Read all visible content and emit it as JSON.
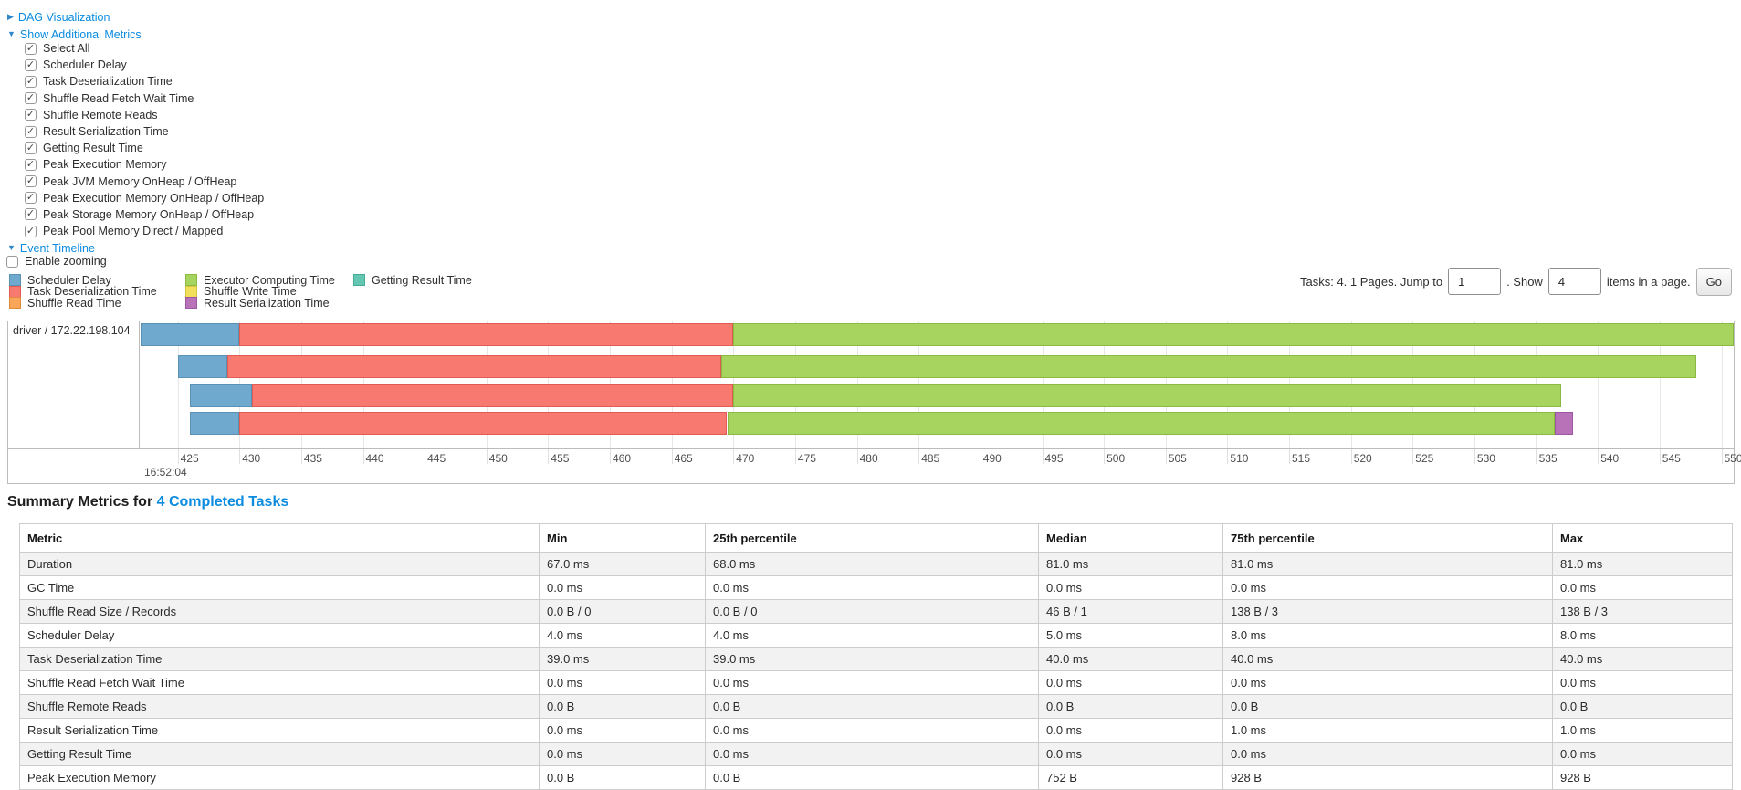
{
  "links": {
    "dag": "DAG Visualization",
    "show_metrics": "Show Additional Metrics",
    "event_timeline": "Event Timeline"
  },
  "metrics_checkboxes": [
    "Select All",
    "Scheduler Delay",
    "Task Deserialization Time",
    "Shuffle Read Fetch Wait Time",
    "Shuffle Remote Reads",
    "Result Serialization Time",
    "Getting Result Time",
    "Peak Execution Memory",
    "Peak JVM Memory OnHeap / OffHeap",
    "Peak Execution Memory OnHeap / OffHeap",
    "Peak Storage Memory OnHeap / OffHeap",
    "Peak Pool Memory Direct / Mapped"
  ],
  "enable_zooming_label": "Enable zooming",
  "legend": {
    "columns": [
      [
        {
          "label": "Scheduler Delay",
          "color": "#6FA9CE",
          "border": "#5992B6"
        },
        {
          "label": "Task Deserialization Time",
          "color": "#F7796F",
          "border": "#E05B51"
        },
        {
          "label": "Shuffle Read Time",
          "color": "#F9A65B",
          "border": "#E08A3C"
        }
      ],
      [
        {
          "label": "Executor Computing Time",
          "color": "#A7D35F",
          "border": "#8BBA42"
        },
        {
          "label": "Shuffle Write Time",
          "color": "#F2E05C",
          "border": "#D8C53E"
        },
        {
          "label": "Result Serialization Time",
          "color": "#B873B8",
          "border": "#9C56A3"
        }
      ],
      [
        {
          "label": "Getting Result Time",
          "color": "#63C7B2",
          "border": "#47AB96"
        }
      ]
    ]
  },
  "pagination": {
    "tasks_text": "Tasks: 4. 1 Pages. Jump to",
    "jump_value": "1",
    "show_text": ". Show",
    "show_value": "4",
    "items_text": "items in a page.",
    "go_label": "Go"
  },
  "chart_data": {
    "type": "timeline-gantt",
    "executor_label": "driver / 172.22.198.104",
    "axis": {
      "unit": "ms within second",
      "major_label": "16:52:04",
      "min": 422,
      "max": 551,
      "ticks": [
        425,
        430,
        435,
        440,
        445,
        450,
        455,
        460,
        465,
        470,
        475,
        480,
        485,
        490,
        495,
        500,
        505,
        510,
        515,
        520,
        525,
        530,
        535,
        540,
        545,
        550
      ]
    },
    "segment_colors": {
      "scheduler_delay": {
        "fill": "#6FA9CE",
        "border": "#5992B6"
      },
      "task_deserialization": {
        "fill": "#F7796F",
        "border": "#E05B51"
      },
      "executor_computing": {
        "fill": "#A7D35F",
        "border": "#8BBA42"
      },
      "result_serialization": {
        "fill": "#B873B8",
        "border": "#9C56A3"
      }
    },
    "tasks": [
      {
        "segments": [
          {
            "type": "scheduler_delay",
            "start": 422,
            "end": 430
          },
          {
            "type": "task_deserialization",
            "start": 430,
            "end": 470
          },
          {
            "type": "executor_computing",
            "start": 470,
            "end": 551
          }
        ]
      },
      {
        "segments": [
          {
            "type": "scheduler_delay",
            "start": 425,
            "end": 429
          },
          {
            "type": "task_deserialization",
            "start": 429,
            "end": 469
          },
          {
            "type": "executor_computing",
            "start": 469,
            "end": 548
          }
        ]
      },
      {
        "segments": [
          {
            "type": "scheduler_delay",
            "start": 426,
            "end": 431
          },
          {
            "type": "task_deserialization",
            "start": 431,
            "end": 470
          },
          {
            "type": "executor_computing",
            "start": 470,
            "end": 537
          }
        ]
      },
      {
        "segments": [
          {
            "type": "scheduler_delay",
            "start": 426,
            "end": 430
          },
          {
            "type": "task_deserialization",
            "start": 430,
            "end": 469.5
          },
          {
            "type": "executor_computing",
            "start": 469.5,
            "end": 536.5
          },
          {
            "type": "result_serialization",
            "start": 536.5,
            "end": 538
          }
        ]
      }
    ]
  },
  "summary": {
    "heading_prefix": "Summary Metrics for ",
    "heading_link": "4 Completed Tasks",
    "table": {
      "columns": [
        "Metric",
        "Min",
        "25th percentile",
        "Median",
        "75th percentile",
        "Max"
      ],
      "rows": [
        {
          "metric": "Duration",
          "values": [
            "67.0 ms",
            "68.0 ms",
            "81.0 ms",
            "81.0 ms",
            "81.0 ms"
          ]
        },
        {
          "metric": "GC Time",
          "values": [
            "0.0 ms",
            "0.0 ms",
            "0.0 ms",
            "0.0 ms",
            "0.0 ms"
          ]
        },
        {
          "metric": "Shuffle Read Size / Records",
          "values": [
            "0.0 B / 0",
            "0.0 B / 0",
            "46 B / 1",
            "138 B / 3",
            "138 B / 3"
          ]
        },
        {
          "metric": "Scheduler Delay",
          "values": [
            "4.0 ms",
            "4.0 ms",
            "5.0 ms",
            "8.0 ms",
            "8.0 ms"
          ]
        },
        {
          "metric": "Task Deserialization Time",
          "values": [
            "39.0 ms",
            "39.0 ms",
            "40.0 ms",
            "40.0 ms",
            "40.0 ms"
          ]
        },
        {
          "metric": "Shuffle Read Fetch Wait Time",
          "values": [
            "0.0 ms",
            "0.0 ms",
            "0.0 ms",
            "0.0 ms",
            "0.0 ms"
          ]
        },
        {
          "metric": "Shuffle Remote Reads",
          "values": [
            "0.0 B",
            "0.0 B",
            "0.0 B",
            "0.0 B",
            "0.0 B"
          ]
        },
        {
          "metric": "Result Serialization Time",
          "values": [
            "0.0 ms",
            "0.0 ms",
            "0.0 ms",
            "1.0 ms",
            "1.0 ms"
          ]
        },
        {
          "metric": "Getting Result Time",
          "values": [
            "0.0 ms",
            "0.0 ms",
            "0.0 ms",
            "0.0 ms",
            "0.0 ms"
          ]
        },
        {
          "metric": "Peak Execution Memory",
          "values": [
            "0.0 B",
            "0.0 B",
            "752 B",
            "928 B",
            "928 B"
          ]
        }
      ]
    }
  }
}
